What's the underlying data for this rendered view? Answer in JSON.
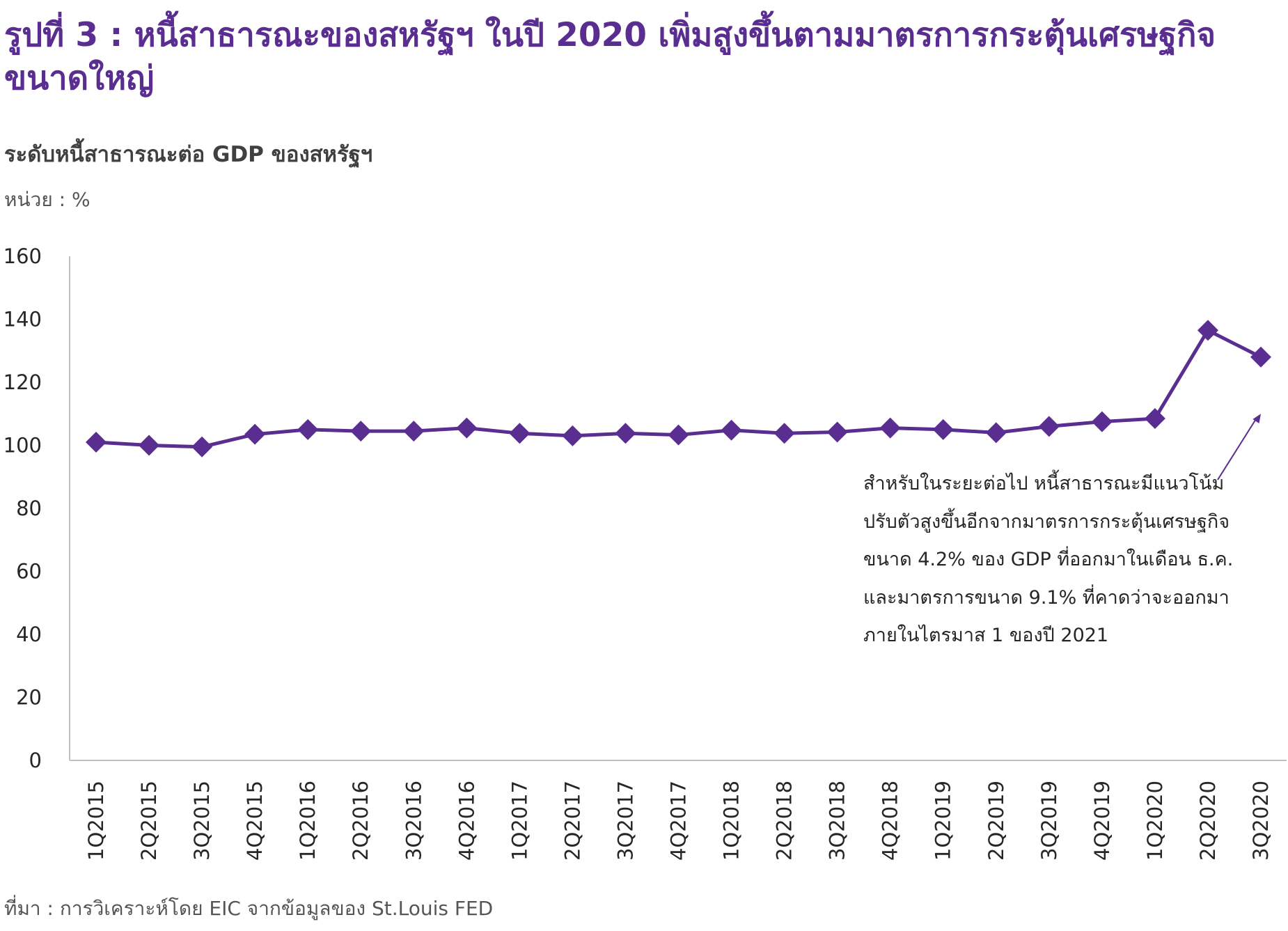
{
  "title": "รูปที่ 3 : หนี้สาธารณะของสหรัฐฯ ในปี 2020 เพิ่มสูงขึ้นตามมาตรการกระตุ้นเศรษฐกิจขนาดใหญ่",
  "subtitle": "ระดับหนี้สาธารณะต่อ GDP ของสหรัฐฯ",
  "unit": "หน่วย : %",
  "source": "ที่มา : การวิเคราะห์โดย EIC จากข้อมูลของ St.Louis FED",
  "annotation": {
    "lines": [
      "สำหรับในระยะต่อไป หนี้สาธารณะมีแนวโน้ม",
      "ปรับตัวสูงขึ้นอีกจากมาตรการกระตุ้นเศรษฐกิจ",
      "ขนาด 4.2% ของ GDP ที่ออกมาในเดือน ธ.ค.",
      "และมาตรการขนาด 9.1% ที่คาดว่าจะออกมา",
      "ภายในไตรมาส 1 ของปี 2021"
    ]
  },
  "colors": {
    "accent": "#5a2d91",
    "axis": "#bfbfbf",
    "text": "#262626"
  },
  "chart_data": {
    "type": "line",
    "title": "ระดับหนี้สาธารณะต่อ GDP ของสหรัฐฯ",
    "xlabel": "",
    "ylabel": "%",
    "ylim": [
      0,
      160
    ],
    "yticks": [
      0,
      20,
      40,
      60,
      80,
      100,
      120,
      140,
      160
    ],
    "grid": false,
    "categories": [
      "1Q2015",
      "2Q2015",
      "3Q2015",
      "4Q2015",
      "1Q2016",
      "2Q2016",
      "3Q2016",
      "4Q2016",
      "1Q2017",
      "2Q2017",
      "3Q2017",
      "4Q2017",
      "1Q2018",
      "2Q2018",
      "3Q2018",
      "4Q2018",
      "1Q2019",
      "2Q2019",
      "3Q2019",
      "4Q2019",
      "1Q2020",
      "2Q2020",
      "3Q2020"
    ],
    "series": [
      {
        "name": "หนี้สาธารณะต่อ GDP",
        "values": [
          101,
          100,
          99.5,
          103.5,
          105,
          104.5,
          104.5,
          105.5,
          103.8,
          103,
          103.8,
          103.3,
          104.8,
          103.8,
          104.2,
          105.5,
          105,
          104,
          106,
          107.5,
          108.5,
          136.5,
          128
        ]
      }
    ],
    "annotation_arrow": {
      "from": {
        "x": "3Q2020",
        "y": 97
      },
      "to": {
        "x": "3Q2020",
        "y": 110
      }
    }
  }
}
